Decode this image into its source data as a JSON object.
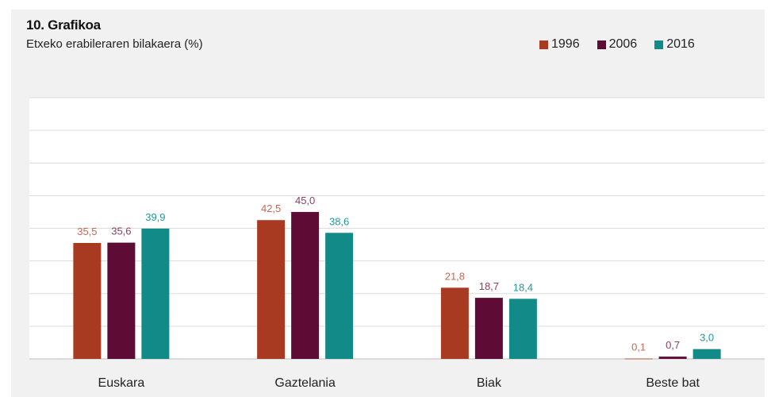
{
  "chart_data": {
    "type": "bar",
    "title": "10. Grafikoa",
    "subtitle": "Etxeko erabileraren bilakaera (%)",
    "categories": [
      "Euskara",
      "Gaztelania",
      "Biak",
      "Beste bat"
    ],
    "series": [
      {
        "name": "1996",
        "color": "#a93a22",
        "values": [
          35.5,
          42.5,
          21.8,
          0.1
        ],
        "labels": [
          "35,5",
          "42,5",
          "21,8",
          "0,1"
        ]
      },
      {
        "name": "2006",
        "color": "#5e0b36",
        "values": [
          35.6,
          45.0,
          18.7,
          0.7
        ],
        "labels": [
          "35,6",
          "45,0",
          "18,7",
          "0,7"
        ]
      },
      {
        "name": "2016",
        "color": "#118a88",
        "values": [
          39.9,
          38.6,
          18.4,
          3.0
        ],
        "labels": [
          "39,9",
          "38,6",
          "18,4",
          "3,0"
        ]
      }
    ],
    "label_colors": [
      "#c46a56",
      "#8a3f66",
      "#1f9a97"
    ],
    "ylim": [
      0,
      80
    ],
    "grid": true,
    "legend_position": "top-right"
  }
}
